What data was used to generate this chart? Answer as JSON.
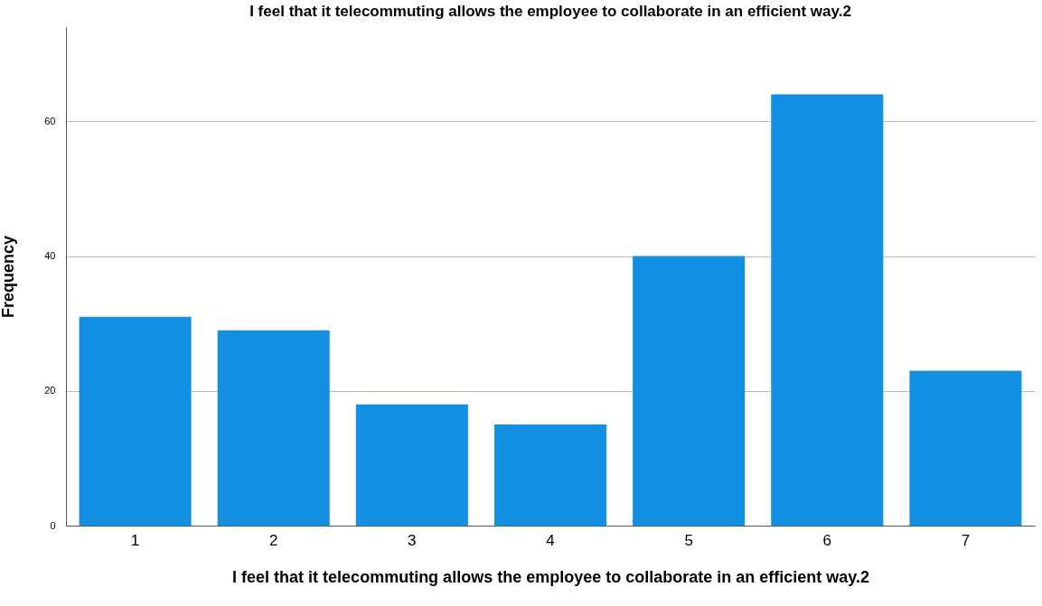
{
  "chart_data": {
    "type": "bar",
    "title": "I feel that it telecommuting allows the employee to collaborate in an efficient way.2",
    "xlabel": "I feel that it telecommuting allows the employee to collaborate in an efficient way.2",
    "ylabel": "Frequency",
    "categories": [
      "1",
      "2",
      "3",
      "4",
      "5",
      "6",
      "7"
    ],
    "values": [
      31,
      29,
      18,
      15,
      40,
      64,
      23
    ],
    "color": "#1490e3",
    "ylim": [
      0,
      74
    ],
    "yticks": [
      0,
      20,
      40,
      60
    ],
    "grid": "y"
  }
}
